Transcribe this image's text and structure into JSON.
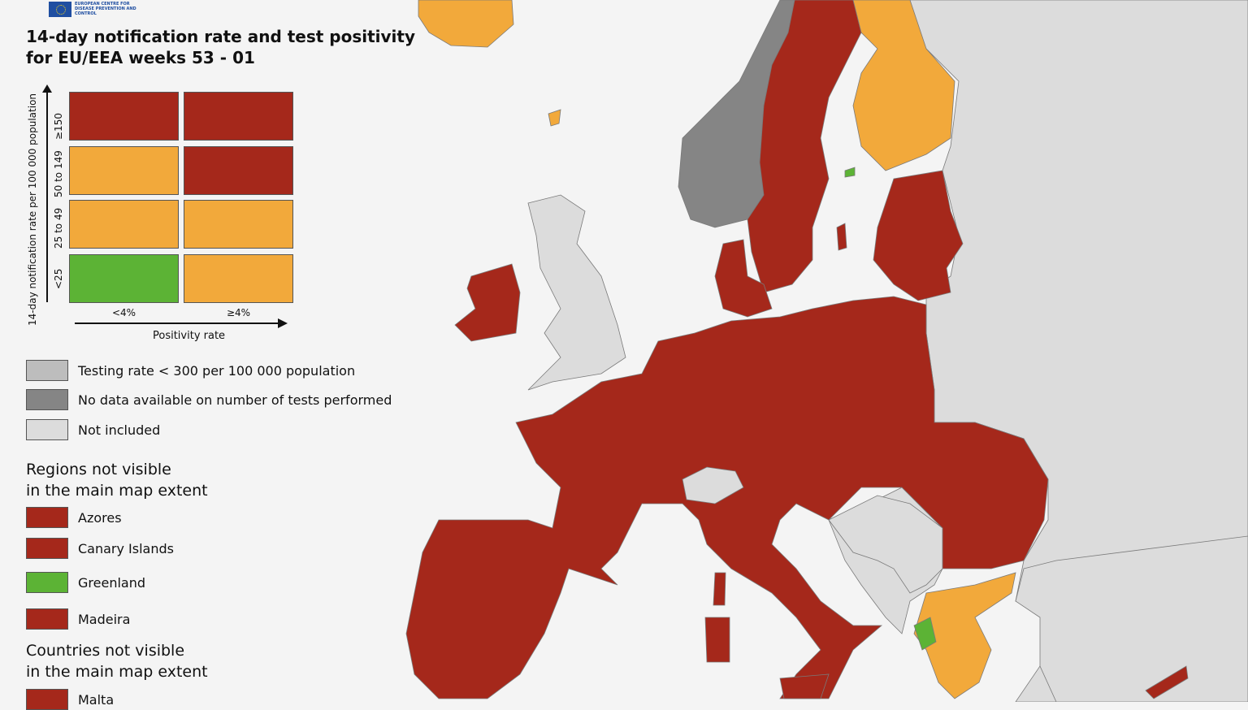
{
  "header": {
    "org_name": "EUROPEAN CENTRE FOR DISEASE PREVENTION AND CONTROL",
    "title_line1": "14-day notification rate and test positivity",
    "title_line2": "for EU/EEA weeks 53 - 01"
  },
  "colors": {
    "red": "#a5281b",
    "orange": "#f2a93b",
    "green": "#5cb335",
    "dark_grey": "#858585",
    "light_grey": "#bdbdbd",
    "not_included": "#dcdcdc",
    "sea": "#f4f4f4"
  },
  "matrix": {
    "y_axis_label": "14-day notification rate per 100 000 population",
    "x_axis_label": "Positivity rate",
    "y_ticks": [
      "≥150",
      "50 to 149",
      "25 to 49",
      "<25"
    ],
    "x_ticks": [
      "<4%",
      "≥4%"
    ],
    "cells": [
      [
        "red",
        "red"
      ],
      [
        "orange",
        "red"
      ],
      [
        "orange",
        "orange"
      ],
      [
        "green",
        "orange"
      ]
    ]
  },
  "legend": {
    "testing_rate": "Testing rate < 300 per 100 000 population",
    "no_data": "No data available on number of tests performed",
    "not_included": "Not included"
  },
  "regions_section": {
    "title_line1": "Regions not visible",
    "title_line2": "in the main map extent",
    "items": [
      {
        "name": "Azores",
        "color": "red"
      },
      {
        "name": "Canary Islands",
        "color": "red"
      },
      {
        "name": "Greenland",
        "color": "green"
      },
      {
        "name": "Madeira",
        "color": "red"
      }
    ]
  },
  "countries_section": {
    "title_line1": "Countries not visible",
    "title_line2": "in the main map extent",
    "items": [
      {
        "name": "Malta",
        "color": "red"
      }
    ]
  },
  "map_regions": [
    {
      "name": "Iceland",
      "status": "orange"
    },
    {
      "name": "Norway",
      "status": "dark_grey"
    },
    {
      "name": "Sweden",
      "status": "red"
    },
    {
      "name": "Finland",
      "status": "orange"
    },
    {
      "name": "Estonia",
      "status": "red"
    },
    {
      "name": "Latvia",
      "status": "red"
    },
    {
      "name": "Lithuania",
      "status": "red"
    },
    {
      "name": "Ireland",
      "status": "red"
    },
    {
      "name": "United Kingdom",
      "status": "not_included"
    },
    {
      "name": "Denmark",
      "status": "red"
    },
    {
      "name": "Netherlands",
      "status": "red"
    },
    {
      "name": "Belgium",
      "status": "red"
    },
    {
      "name": "Luxembourg",
      "status": "red"
    },
    {
      "name": "Germany",
      "status": "red"
    },
    {
      "name": "Poland",
      "status": "red"
    },
    {
      "name": "Czechia",
      "status": "red"
    },
    {
      "name": "Slovakia",
      "status": "red"
    },
    {
      "name": "Austria",
      "status": "red"
    },
    {
      "name": "Hungary",
      "status": "red"
    },
    {
      "name": "Slovenia",
      "status": "red"
    },
    {
      "name": "Croatia",
      "status": "red"
    },
    {
      "name": "Romania",
      "status": "red"
    },
    {
      "name": "Bulgaria",
      "status": "red"
    },
    {
      "name": "France",
      "status": "red"
    },
    {
      "name": "Spain",
      "status": "red"
    },
    {
      "name": "Portugal",
      "status": "red"
    },
    {
      "name": "Italy",
      "status": "red"
    },
    {
      "name": "Switzerland",
      "status": "not_included"
    },
    {
      "name": "Greece",
      "status": "orange"
    },
    {
      "name": "Cyprus",
      "status": "red"
    },
    {
      "name": "Aland Islands",
      "status": "green"
    },
    {
      "name": "Western Greece",
      "status": "green"
    }
  ]
}
